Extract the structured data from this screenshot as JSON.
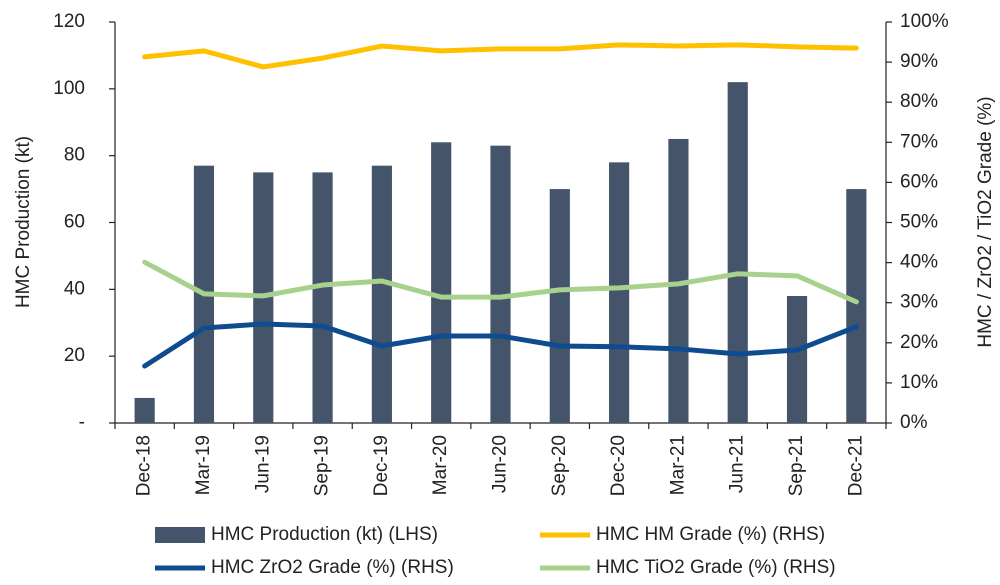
{
  "chart_data": {
    "type": "bar",
    "ylabel": "HMC Production (kt)",
    "y2label": "HMC / ZrO2 / TiO2 Grade (%)",
    "categories": [
      "Dec-18",
      "Mar-19",
      "Jun-19",
      "Sep-19",
      "Dec-19",
      "Mar-20",
      "Jun-20",
      "Sep-20",
      "Dec-20",
      "Mar-21",
      "Jun-21",
      "Sep-21",
      "Dec-21"
    ],
    "series": [
      {
        "name": "HMC Production (kt) (LHS)",
        "type": "bar",
        "color": "#44546a",
        "values": [
          7.5,
          77,
          75,
          75,
          77,
          84,
          83,
          70,
          78,
          85,
          102,
          38,
          70
        ]
      },
      {
        "name": "HMC HM Grade (%) (RHS)",
        "type": "line",
        "axis": "y2",
        "color": "#ffc000",
        "values": [
          91.3,
          92.8,
          88.8,
          91,
          94,
          92.8,
          93.3,
          93.3,
          94.3,
          94,
          94.3,
          93.8,
          93.5
        ]
      },
      {
        "name": "HMC ZrO2 Grade (%) (RHS)",
        "type": "line",
        "axis": "y2",
        "color": "#0f4c8f",
        "values": [
          14.2,
          23.7,
          24.7,
          24.2,
          19.2,
          21.7,
          21.7,
          19.2,
          19,
          18.5,
          17.2,
          18.2,
          24
        ]
      },
      {
        "name": "HMC TiO2 Grade (%) (RHS)",
        "type": "line",
        "axis": "y2",
        "color": "#a9d18e",
        "values": [
          40.1,
          32.2,
          31.7,
          34.4,
          35.4,
          31.4,
          31.4,
          33.2,
          33.7,
          34.7,
          37.2,
          36.7,
          30.2
        ]
      }
    ],
    "ylim": [
      0,
      120
    ],
    "yticks": [
      {
        "value": 0,
        "label": "-"
      },
      20,
      40,
      60,
      80,
      100,
      120
    ],
    "y2lim": [
      0,
      100
    ],
    "y2ticks": [
      {
        "value": 0,
        "label": "0%"
      },
      {
        "value": 10,
        "label": "10%"
      },
      {
        "value": 20,
        "label": "20%"
      },
      {
        "value": 30,
        "label": "30%"
      },
      {
        "value": 40,
        "label": "40%"
      },
      {
        "value": 50,
        "label": "50%"
      },
      {
        "value": 60,
        "label": "60%"
      },
      {
        "value": 70,
        "label": "70%"
      },
      {
        "value": 80,
        "label": "80%"
      },
      {
        "value": 90,
        "label": "90%"
      },
      {
        "value": 100,
        "label": "100%"
      }
    ],
    "grid": false,
    "legend": "bottom"
  }
}
